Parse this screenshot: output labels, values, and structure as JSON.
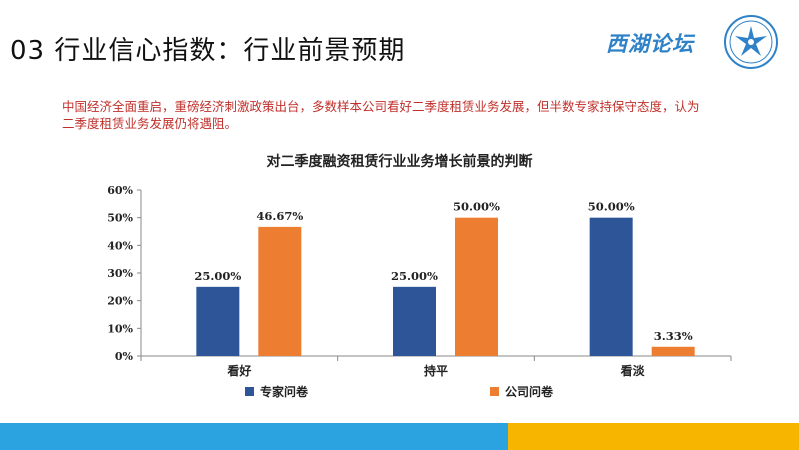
{
  "header": {
    "title": "03 行业信心指数：行业前景预期",
    "logo_text": "西湖论坛"
  },
  "intro_text": "中国经济全面重启，重磅经济刺激政策出台，多数样本公司看好二季度租赁业务发展，但半数专家持保守态度，认为二季度租赁业务发展仍将遇阻。",
  "chart_data": {
    "type": "bar",
    "title": "对二季度融资租赁行业业务增长前景的判断",
    "categories": [
      "看好",
      "持平",
      "看淡"
    ],
    "series": [
      {
        "name": "专家问卷",
        "values": [
          25.0,
          25.0,
          50.0
        ],
        "labels": [
          "25.00%",
          "25.00%",
          "50.00%"
        ],
        "color": "#2e5597"
      },
      {
        "name": "公司问卷",
        "values": [
          46.67,
          50.0,
          3.33
        ],
        "labels": [
          "46.67%",
          "50.00%",
          "3.33%"
        ],
        "color": "#ed7d31"
      }
    ],
    "y_ticks": [
      "0%",
      "10%",
      "20%",
      "30%",
      "40%",
      "50%",
      "60%"
    ],
    "ylim": [
      0,
      60
    ],
    "xlabel": "",
    "ylabel": "",
    "grid": false,
    "legend_position": "bottom"
  },
  "colors": {
    "intro_text": "#c0302b",
    "footer_blue": "#2aa3e0",
    "footer_yellow": "#f7b500",
    "brand": "#2f82c8"
  }
}
